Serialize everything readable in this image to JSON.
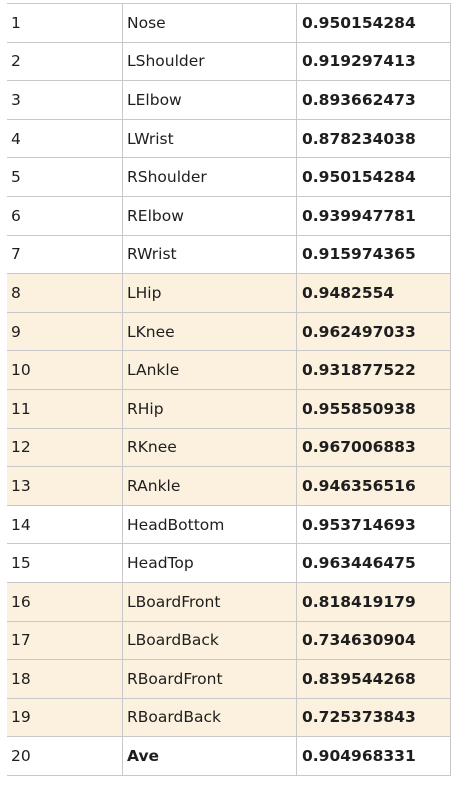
{
  "colors": {
    "highlight": "#fbf1de",
    "border": "#c8c8c8"
  },
  "rows": [
    {
      "num": "1",
      "name": "Nose",
      "value": "0.950154284",
      "highlight": false
    },
    {
      "num": "2",
      "name": "LShoulder",
      "value": "0.919297413",
      "highlight": false
    },
    {
      "num": "3",
      "name": "LElbow",
      "value": "0.893662473",
      "highlight": false
    },
    {
      "num": "4",
      "name": "LWrist",
      "value": "0.878234038",
      "highlight": false
    },
    {
      "num": "5",
      "name": "RShoulder",
      "value": "0.950154284",
      "highlight": false
    },
    {
      "num": "6",
      "name": "RElbow",
      "value": "0.939947781",
      "highlight": false
    },
    {
      "num": "7",
      "name": "RWrist",
      "value": "0.915974365",
      "highlight": false
    },
    {
      "num": "8",
      "name": "LHip",
      "value": "0.9482554",
      "highlight": true
    },
    {
      "num": "9",
      "name": "LKnee",
      "value": "0.962497033",
      "highlight": true
    },
    {
      "num": "10",
      "name": "LAnkle",
      "value": "0.931877522",
      "highlight": true
    },
    {
      "num": "11",
      "name": "RHip",
      "value": "0.955850938",
      "highlight": true
    },
    {
      "num": "12",
      "name": "RKnee",
      "value": "0.967006883",
      "highlight": true
    },
    {
      "num": "13",
      "name": "RAnkle",
      "value": "0.946356516",
      "highlight": true
    },
    {
      "num": "14",
      "name": "HeadBottom",
      "value": "0.953714693",
      "highlight": false
    },
    {
      "num": "15",
      "name": "HeadTop",
      "value": "0.963446475",
      "highlight": false
    },
    {
      "num": "16",
      "name": "LBoardFront",
      "value": "0.818419179",
      "highlight": true
    },
    {
      "num": "17",
      "name": "LBoardBack",
      "value": "0.734630904",
      "highlight": true
    },
    {
      "num": "18",
      "name": "RBoardFront",
      "value": "0.839544268",
      "highlight": true
    },
    {
      "num": "19",
      "name": "RBoardBack",
      "value": "0.725373843",
      "highlight": true
    },
    {
      "num": "20",
      "name": "Ave",
      "value": "0.904968331",
      "highlight": false,
      "bold_name": true
    }
  ]
}
